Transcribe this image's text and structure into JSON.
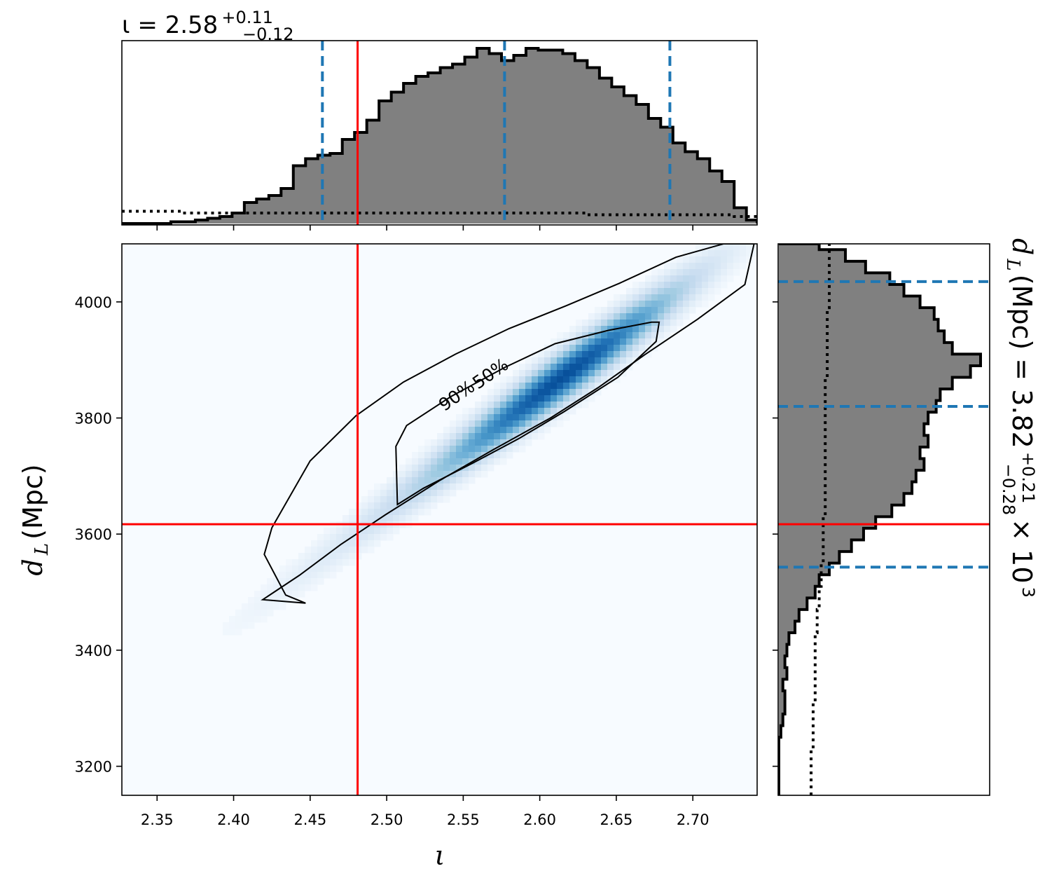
{
  "chart_data": [
    {
      "type": "histogram",
      "panel": "top marginal",
      "title_main": "ι = 2.58",
      "title_sup": "+0.11",
      "title_sub": "−0.12",
      "x_range": [
        2.327,
        2.742
      ],
      "bin_edges": [
        2.327,
        2.335,
        2.343,
        2.351,
        2.359,
        2.367,
        2.375,
        2.383,
        2.391,
        2.399,
        2.407,
        2.415,
        2.423,
        2.431,
        2.439,
        2.447,
        2.455,
        2.463,
        2.471,
        2.479,
        2.487,
        2.495,
        2.503,
        2.511,
        2.519,
        2.527,
        2.535,
        2.543,
        2.551,
        2.559,
        2.567,
        2.575,
        2.583,
        2.591,
        2.599,
        2.607,
        2.615,
        2.623,
        2.631,
        2.639,
        2.647,
        2.655,
        2.663,
        2.671,
        2.679,
        2.687,
        2.695,
        2.703,
        2.711,
        2.719,
        2.727,
        2.735,
        2.742
      ],
      "counts": [
        0.0,
        0.0,
        0.0,
        0.0,
        0.01,
        0.01,
        0.02,
        0.03,
        0.04,
        0.06,
        0.12,
        0.14,
        0.16,
        0.2,
        0.33,
        0.37,
        0.39,
        0.4,
        0.48,
        0.52,
        0.59,
        0.7,
        0.75,
        0.8,
        0.84,
        0.86,
        0.89,
        0.91,
        0.95,
        1.0,
        0.97,
        0.93,
        0.96,
        1.0,
        0.99,
        0.99,
        0.97,
        0.93,
        0.89,
        0.83,
        0.78,
        0.73,
        0.68,
        0.6,
        0.55,
        0.46,
        0.41,
        0.37,
        0.3,
        0.24,
        0.09,
        0.02
      ],
      "prior_line": [
        0.07,
        0.07,
        0.07,
        0.07,
        0.07,
        0.06,
        0.06,
        0.06,
        0.06,
        0.06,
        0.06,
        0.06,
        0.06,
        0.06,
        0.06,
        0.06,
        0.06,
        0.06,
        0.06,
        0.06,
        0.06,
        0.06,
        0.06,
        0.06,
        0.06,
        0.06,
        0.06,
        0.06,
        0.06,
        0.06,
        0.06,
        0.06,
        0.06,
        0.06,
        0.06,
        0.06,
        0.06,
        0.06,
        0.05,
        0.05,
        0.05,
        0.05,
        0.05,
        0.05,
        0.05,
        0.05,
        0.05,
        0.05,
        0.05,
        0.05,
        0.04,
        0.04
      ],
      "quantiles": [
        2.458,
        2.577,
        2.685
      ],
      "injected_value": 2.481
    },
    {
      "type": "histogram",
      "panel": "right marginal (horizontal)",
      "label_main": "d",
      "label_sub_L": "L",
      "label_rest": " (Mpc) = 3.82",
      "label_sup": "+0.21",
      "label_sub": "−0.28",
      "label_times": " × 10",
      "label_exp": "3",
      "y_range": [
        3150,
        4100
      ],
      "bin_edges": [
        3150,
        3170,
        3190,
        3210,
        3230,
        3250,
        3270,
        3290,
        3310,
        3330,
        3350,
        3370,
        3390,
        3410,
        3430,
        3450,
        3470,
        3490,
        3510,
        3530,
        3550,
        3570,
        3590,
        3610,
        3630,
        3650,
        3670,
        3690,
        3710,
        3730,
        3750,
        3770,
        3790,
        3810,
        3830,
        3850,
        3870,
        3890,
        3910,
        3930,
        3950,
        3970,
        3990,
        4010,
        4030,
        4050,
        4070,
        4090,
        4100
      ],
      "counts": [
        0.0,
        0.0,
        0.0,
        0.0,
        0.0,
        0.01,
        0.02,
        0.03,
        0.03,
        0.02,
        0.04,
        0.03,
        0.04,
        0.05,
        0.08,
        0.1,
        0.14,
        0.18,
        0.2,
        0.25,
        0.3,
        0.36,
        0.42,
        0.48,
        0.56,
        0.62,
        0.66,
        0.68,
        0.72,
        0.7,
        0.74,
        0.72,
        0.74,
        0.78,
        0.8,
        0.86,
        0.95,
        1.0,
        0.86,
        0.82,
        0.79,
        0.77,
        0.7,
        0.62,
        0.55,
        0.43,
        0.33,
        0.2
      ],
      "prior_line": [
        0.16,
        0.16,
        0.16,
        0.16,
        0.17,
        0.17,
        0.17,
        0.17,
        0.18,
        0.18,
        0.18,
        0.18,
        0.18,
        0.18,
        0.19,
        0.19,
        0.2,
        0.2,
        0.21,
        0.21,
        0.22,
        0.22,
        0.22,
        0.22,
        0.23,
        0.23,
        0.23,
        0.23,
        0.23,
        0.23,
        0.23,
        0.23,
        0.23,
        0.23,
        0.23,
        0.23,
        0.24,
        0.24,
        0.24,
        0.24,
        0.24,
        0.24,
        0.25,
        0.25,
        0.25,
        0.25,
        0.25,
        0.25
      ],
      "quantiles": [
        3543,
        3820,
        4035
      ],
      "injected_value": 3617
    },
    {
      "type": "heatmap",
      "panel": "2D joint density",
      "xlabel": "ι",
      "ylabel_main": "d",
      "ylabel_sub": "L",
      "ylabel_rest": " (Mpc)",
      "xlim": [
        2.327,
        2.742
      ],
      "ylim": [
        3150,
        4100
      ],
      "xticks": [
        "2.35",
        "2.40",
        "2.45",
        "2.50",
        "2.55",
        "2.60",
        "2.65",
        "2.70"
      ],
      "xtick_values": [
        2.35,
        2.4,
        2.45,
        2.5,
        2.55,
        2.6,
        2.65,
        2.7
      ],
      "yticks": [
        "3200",
        "3400",
        "3600",
        "3800",
        "4000"
      ],
      "ytick_values": [
        3200,
        3400,
        3600,
        3800,
        4000
      ],
      "colormap": "Blues",
      "density_ridge": {
        "x": [
          2.38,
          2.74
        ],
        "y": [
          3400,
          4120
        ]
      },
      "contour_levels": [
        "90%",
        "50%"
      ],
      "contour_90": [
        [
          2.419,
          3487
        ],
        [
          2.443,
          3529
        ],
        [
          2.47,
          3582
        ],
        [
          2.499,
          3633
        ],
        [
          2.535,
          3693
        ],
        [
          2.57,
          3746
        ],
        [
          2.607,
          3800
        ],
        [
          2.638,
          3852
        ],
        [
          2.668,
          3908
        ],
        [
          2.703,
          3970
        ],
        [
          2.734,
          4030
        ],
        [
          2.74,
          4100
        ],
        [
          2.72,
          4100
        ],
        [
          2.689,
          4077
        ],
        [
          2.652,
          4032
        ],
        [
          2.617,
          3993
        ],
        [
          2.58,
          3954
        ],
        [
          2.545,
          3910
        ],
        [
          2.511,
          3862
        ],
        [
          2.48,
          3804
        ],
        [
          2.45,
          3726
        ],
        [
          2.425,
          3611
        ],
        [
          2.42,
          3565
        ],
        [
          2.434,
          3495
        ],
        [
          2.447,
          3481
        ]
      ],
      "contour_50": [
        [
          2.507,
          3651
        ],
        [
          2.524,
          3679
        ],
        [
          2.556,
          3722
        ],
        [
          2.586,
          3764
        ],
        [
          2.616,
          3811
        ],
        [
          2.651,
          3870
        ],
        [
          2.676,
          3932
        ],
        [
          2.678,
          3965
        ],
        [
          2.673,
          3965
        ],
        [
          2.645,
          3951
        ],
        [
          2.61,
          3928
        ],
        [
          2.577,
          3887
        ],
        [
          2.542,
          3837
        ],
        [
          2.513,
          3787
        ],
        [
          2.506,
          3751
        ]
      ],
      "label_positions": [
        [
          2.548,
          3830
        ],
        [
          2.57,
          3868
        ]
      ],
      "injected_x": 2.481,
      "injected_y": 3617
    }
  ],
  "colors": {
    "hist_fill": "#808080",
    "hist_edge": "#000000",
    "quantile": "#1f77b4",
    "injection": "#ff0000",
    "prior": "#000000",
    "contour": "#000000"
  }
}
